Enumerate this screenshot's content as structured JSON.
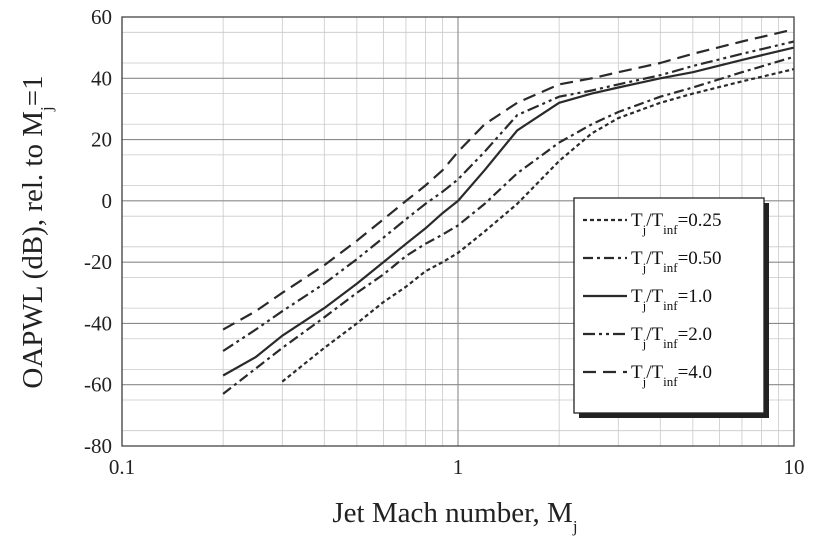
{
  "chart_data": {
    "type": "line",
    "title": "",
    "xlabel": {
      "main": "Jet Mach number, M",
      "sub": "j"
    },
    "ylabel": {
      "main": "OAPWL (dB), rel. to M",
      "sub": "j",
      "suffix": "=1"
    },
    "xscale": "log",
    "xlim": [
      0.1,
      10
    ],
    "ylim": [
      -80,
      60
    ],
    "xticks": [
      0.1,
      1,
      10
    ],
    "xtick_labels": [
      "0.1",
      "1",
      "10"
    ],
    "yticks": [
      -80,
      -60,
      -40,
      -20,
      0,
      20,
      40,
      60
    ],
    "ytick_labels": [
      "-80",
      "-60",
      "-40",
      "-20",
      "0",
      "20",
      "40",
      "60"
    ],
    "grid": true,
    "legend_position": "lower-right",
    "series": [
      {
        "name": "Tj/Tinf=0.25",
        "label": {
          "a": "T",
          "b": "j",
          "c": "/T",
          "d": "inf",
          "e": "=0.25"
        },
        "dash": "dotted",
        "x": [
          0.3,
          0.4,
          0.5,
          0.6,
          0.7,
          0.8,
          0.9,
          1.0,
          1.2,
          1.5,
          2.0,
          2.5,
          3.0,
          4.0,
          5.0,
          7.0,
          10.0
        ],
        "y": [
          -59,
          -48,
          -40,
          -33,
          -28,
          -23,
          -20,
          -17,
          -10,
          -1,
          13,
          22,
          27,
          32,
          35,
          39,
          43
        ]
      },
      {
        "name": "Tj/Tinf=0.50",
        "label": {
          "a": "T",
          "b": "j",
          "c": "/T",
          "d": "inf",
          "e": "=0.50"
        },
        "dash": "dashdot",
        "x": [
          0.2,
          0.3,
          0.4,
          0.5,
          0.6,
          0.7,
          0.8,
          0.9,
          1.0,
          1.2,
          1.5,
          2.0,
          2.5,
          3.0,
          4.0,
          5.0,
          7.0,
          10.0
        ],
        "y": [
          -63,
          -48,
          -38,
          -30,
          -24,
          -18,
          -14,
          -11,
          -8,
          -1,
          9,
          19,
          25,
          29,
          34,
          37,
          42,
          47
        ]
      },
      {
        "name": "Tj/Tinf=1.0",
        "label": {
          "a": "T",
          "b": "j",
          "c": "/T",
          "d": "inf",
          "e": "=1.0"
        },
        "dash": "solid",
        "x": [
          0.2,
          0.25,
          0.3,
          0.4,
          0.5,
          0.6,
          0.7,
          0.8,
          0.9,
          1.0,
          1.2,
          1.5,
          2.0,
          2.5,
          3.0,
          4.0,
          5.0,
          7.0,
          10.0
        ],
        "y": [
          -57,
          -51,
          -44,
          -35,
          -27,
          -20,
          -14,
          -9,
          -4,
          0,
          10,
          23,
          32,
          35,
          37,
          40,
          42,
          46,
          50
        ]
      },
      {
        "name": "Tj/Tinf=2.0",
        "label": {
          "a": "T",
          "b": "j",
          "c": "/T",
          "d": "inf",
          "e": "=2.0"
        },
        "dash": "dashdotdot",
        "x": [
          0.2,
          0.25,
          0.3,
          0.4,
          0.5,
          0.6,
          0.7,
          0.8,
          0.9,
          1.0,
          1.2,
          1.5,
          2.0,
          2.5,
          3.0,
          4.0,
          5.0,
          7.0,
          10.0
        ],
        "y": [
          -49,
          -42,
          -36,
          -27,
          -19,
          -12,
          -6,
          -1,
          3,
          7,
          16,
          28,
          34,
          36,
          38,
          41,
          44,
          48,
          52
        ]
      },
      {
        "name": "Tj/Tinf=4.0",
        "label": {
          "a": "T",
          "b": "j",
          "c": "/T",
          "d": "inf",
          "e": "=4.0"
        },
        "dash": "dashed",
        "x": [
          0.2,
          0.25,
          0.3,
          0.4,
          0.5,
          0.6,
          0.7,
          0.8,
          0.9,
          1.0,
          1.2,
          1.5,
          2.0,
          2.5,
          3.0,
          4.0,
          5.0,
          7.0,
          10.0
        ],
        "y": [
          -42,
          -36,
          -30,
          -21,
          -13,
          -6,
          0,
          5,
          10,
          16,
          25,
          32,
          38,
          40,
          42,
          45,
          48,
          52,
          56
        ]
      }
    ]
  }
}
